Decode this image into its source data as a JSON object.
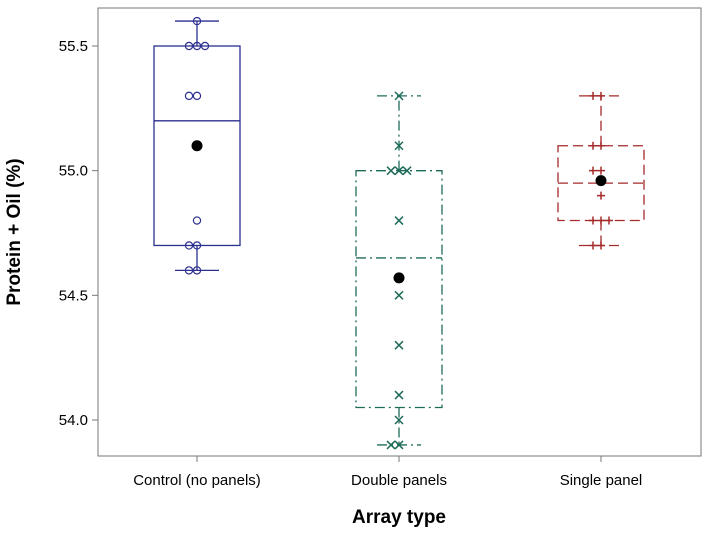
{
  "chart_data": {
    "type": "box",
    "xlabel": "Array type",
    "ylabel": "Protein + Oil (%)",
    "ylim": [
      53.86,
      55.65
    ],
    "yticks": [
      54.0,
      54.5,
      55.0,
      55.5
    ],
    "ytick_labels": [
      "54.0",
      "54.5",
      "55.0",
      "55.5"
    ],
    "categories": [
      "Control (no panels)",
      "Double panels",
      "Single panel"
    ],
    "grid": false,
    "series": [
      {
        "category": "Control (no panels)",
        "color": "#2b2f8f",
        "line_style": "solid",
        "marker": "circle",
        "q1": 54.7,
        "median": 55.2,
        "q3": 55.5,
        "whisker_low": 54.6,
        "whisker_high": 55.6,
        "mean": 55.1,
        "points": [
          55.6,
          55.5,
          55.5,
          55.5,
          55.3,
          55.3,
          54.8,
          54.7,
          54.7,
          54.6,
          54.6
        ]
      },
      {
        "category": "Double panels",
        "color": "#1f6b5a",
        "line_style": "dash-dot",
        "marker": "x",
        "q1": 54.05,
        "median": 54.65,
        "q3": 55.0,
        "whisker_low": 53.9,
        "whisker_high": 55.3,
        "mean": 54.57,
        "points": [
          55.3,
          55.1,
          55.0,
          55.0,
          55.0,
          54.8,
          54.5,
          54.3,
          54.1,
          54.0,
          53.9,
          53.9
        ]
      },
      {
        "category": "Single panel",
        "color": "#a52a2a",
        "line_style": "dashed",
        "marker": "plus",
        "q1": 54.8,
        "median": 54.95,
        "q3": 55.1,
        "whisker_low": 54.7,
        "whisker_high": 55.3,
        "mean": 54.96,
        "points": [
          55.3,
          55.3,
          55.1,
          55.1,
          55.0,
          55.0,
          54.96,
          54.9,
          54.8,
          54.8,
          54.8,
          54.7,
          54.7
        ]
      }
    ]
  }
}
